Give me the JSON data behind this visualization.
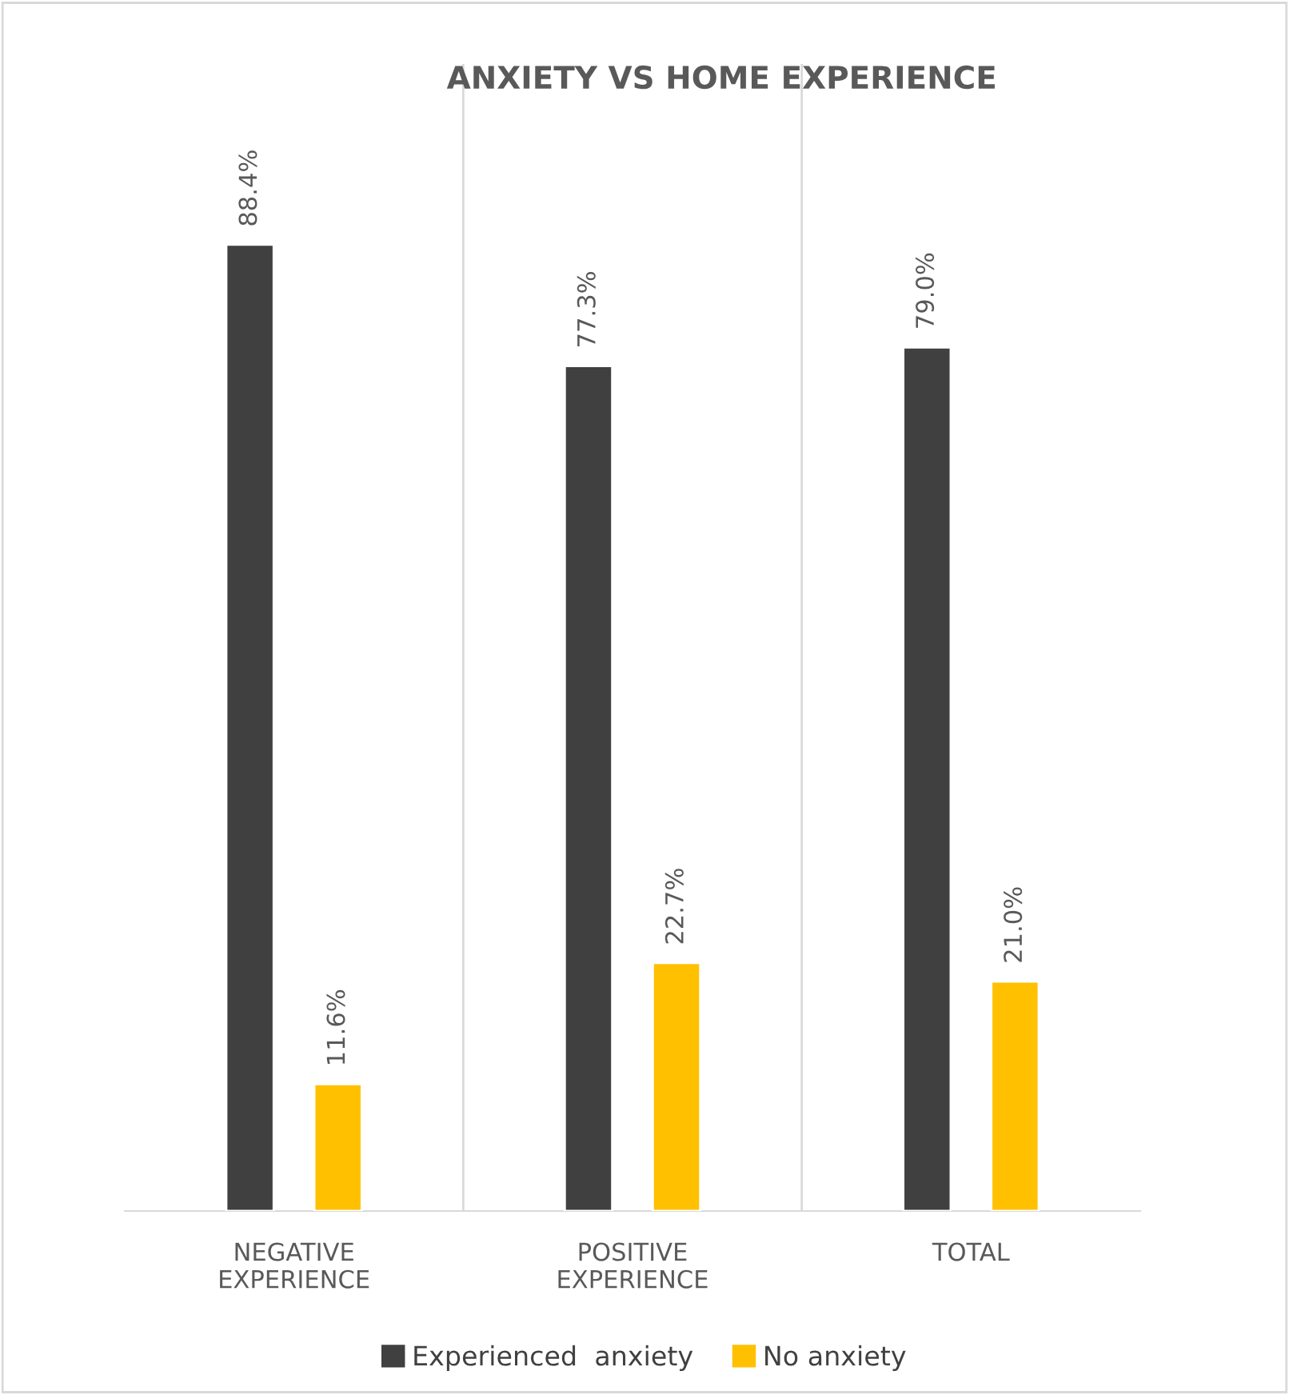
{
  "chart_data": {
    "type": "bar",
    "title": "ANXIETY VS HOME EXPERIENCE",
    "categories": [
      "NEGATIVE EXPERIENCE",
      "POSITIVE EXPERIENCE",
      "TOTAL"
    ],
    "series": [
      {
        "name": "Experienced  anxiety",
        "color": "#404040",
        "values": [
          88.4,
          77.3,
          79.0
        ],
        "value_labels": [
          "88.4%",
          "77.3%",
          "79.0%"
        ]
      },
      {
        "name": "No anxiety",
        "color": "#ffc000",
        "values": [
          11.6,
          22.7,
          21.0
        ],
        "value_labels": [
          "11.6%",
          "22.7%",
          "21.0%"
        ]
      }
    ],
    "grid": "x",
    "legend": "bottom"
  }
}
